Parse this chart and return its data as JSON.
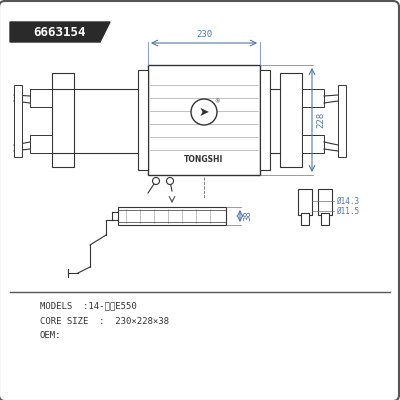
{
  "part_number": "6663154",
  "model": "14-荣威E550",
  "core_size": "230×228×38",
  "oem": "",
  "dim_width": "230",
  "dim_height": "228",
  "dim_depth": "38",
  "dim_d1": "Ø11.5",
  "dim_d2": "Ø14.3",
  "bg_color": "#ffffff",
  "border_color": "#555555",
  "line_color": "#333333",
  "dim_color": "#5577aa",
  "label_bg": "#222222",
  "label_fg": "#ffffff"
}
